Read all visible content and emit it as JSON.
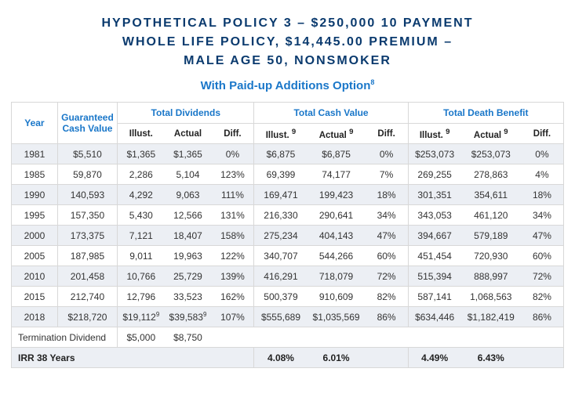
{
  "title_l1": "HYPOTHETICAL POLICY 3 – $250,000 10 PAYMENT",
  "title_l2": "WHOLE LIFE POLICY, $14,445.00 PREMIUM –",
  "title_l3": "MALE AGE 50, NONSMOKER",
  "subtitle": "With Paid-up Additions Option",
  "subtitle_sup": "8",
  "headers": {
    "year": "Year",
    "gcv": "Guaranteed Cash Value",
    "total_div": "Total Dividends",
    "total_cv": "Total Cash Value",
    "total_db": "Total Death Benefit",
    "illust": "Illust.",
    "illust9": "Illust.",
    "actual": "Actual",
    "actual9": "Actual",
    "diff": "Diff.",
    "sup9": "9"
  },
  "rows": [
    {
      "y": "1981",
      "gcv": "$5,510",
      "di": "$1,365",
      "da": "$1,365",
      "dd": "0%",
      "ci": "$6,875",
      "ca": "$6,875",
      "cd": "0%",
      "bi": "$253,073",
      "ba": "$253,073",
      "bd": "0%"
    },
    {
      "y": "1985",
      "gcv": "59,870",
      "di": "2,286",
      "da": "5,104",
      "dd": "123%",
      "ci": "69,399",
      "ca": "74,177",
      "cd": "7%",
      "bi": "269,255",
      "ba": "278,863",
      "bd": "4%"
    },
    {
      "y": "1990",
      "gcv": "140,593",
      "di": "4,292",
      "da": "9,063",
      "dd": "111%",
      "ci": "169,471",
      "ca": "199,423",
      "cd": "18%",
      "bi": "301,351",
      "ba": "354,611",
      "bd": "18%"
    },
    {
      "y": "1995",
      "gcv": "157,350",
      "di": "5,430",
      "da": "12,566",
      "dd": "131%",
      "ci": "216,330",
      "ca": "290,641",
      "cd": "34%",
      "bi": "343,053",
      "ba": "461,120",
      "bd": "34%"
    },
    {
      "y": "2000",
      "gcv": "173,375",
      "di": "7,121",
      "da": "18,407",
      "dd": "158%",
      "ci": "275,234",
      "ca": "404,143",
      "cd": "47%",
      "bi": "394,667",
      "ba": "579,189",
      "bd": "47%"
    },
    {
      "y": "2005",
      "gcv": "187,985",
      "di": "9,011",
      "da": "19,963",
      "dd": "122%",
      "ci": "340,707",
      "ca": "544,266",
      "cd": "60%",
      "bi": "451,454",
      "ba": "720,930",
      "bd": "60%"
    },
    {
      "y": "2010",
      "gcv": "201,458",
      "di": "10,766",
      "da": "25,729",
      "dd": "139%",
      "ci": "416,291",
      "ca": "718,079",
      "cd": "72%",
      "bi": "515,394",
      "ba": "888,997",
      "bd": "72%"
    },
    {
      "y": "2015",
      "gcv": "212,740",
      "di": "12,796",
      "da": "33,523",
      "dd": "162%",
      "ci": "500,379",
      "ca": "910,609",
      "cd": "82%",
      "bi": "587,141",
      "ba": "1,068,563",
      "bd": "82%"
    }
  ],
  "row2018": {
    "y": "2018",
    "gcv": "$218,720",
    "di": "$19,112",
    "da": "$39,583",
    "dd": "107%",
    "ci": "$555,689",
    "ca": "$1,035,569",
    "cd": "86%",
    "bi": "$634,446",
    "ba": "$1,182,419",
    "bd": "86%"
  },
  "term_div": {
    "label": "Termination Dividend",
    "i": "$5,000",
    "a": "$8,750"
  },
  "irr": {
    "label": "IRR 38 Years",
    "ci": "4.08%",
    "ca": "6.01%",
    "bi": "4.49%",
    "ba": "6.43%"
  },
  "colors": {
    "title": "#0a3a6e",
    "accent": "#1a77c9",
    "alt_row": "#eceff4",
    "border": "#d8d8d8",
    "text": "#333333"
  }
}
